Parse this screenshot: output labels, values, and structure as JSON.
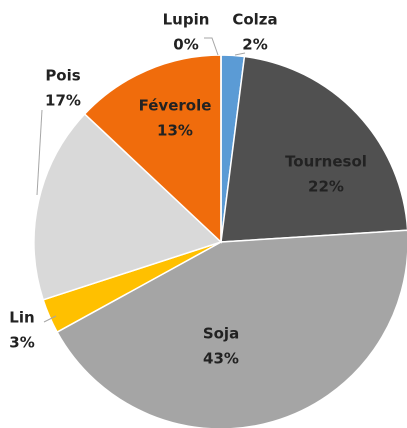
{
  "chart_data": {
    "type": "pie",
    "categories": [
      "Colza",
      "Tournesol",
      "Soja",
      "Lin",
      "Pois",
      "Féverole",
      "Lupin"
    ],
    "values": [
      2,
      22,
      43,
      3,
      17,
      13,
      0
    ],
    "value_labels": [
      "2%",
      "22%",
      "43%",
      "3%",
      "17%",
      "13%",
      "0%"
    ],
    "colors": [
      "#5b9bd5",
      "#505050",
      "#a5a5a5",
      "#ffc000",
      "#d9d9d9",
      "#f06c0c",
      "#70ad47"
    ]
  }
}
